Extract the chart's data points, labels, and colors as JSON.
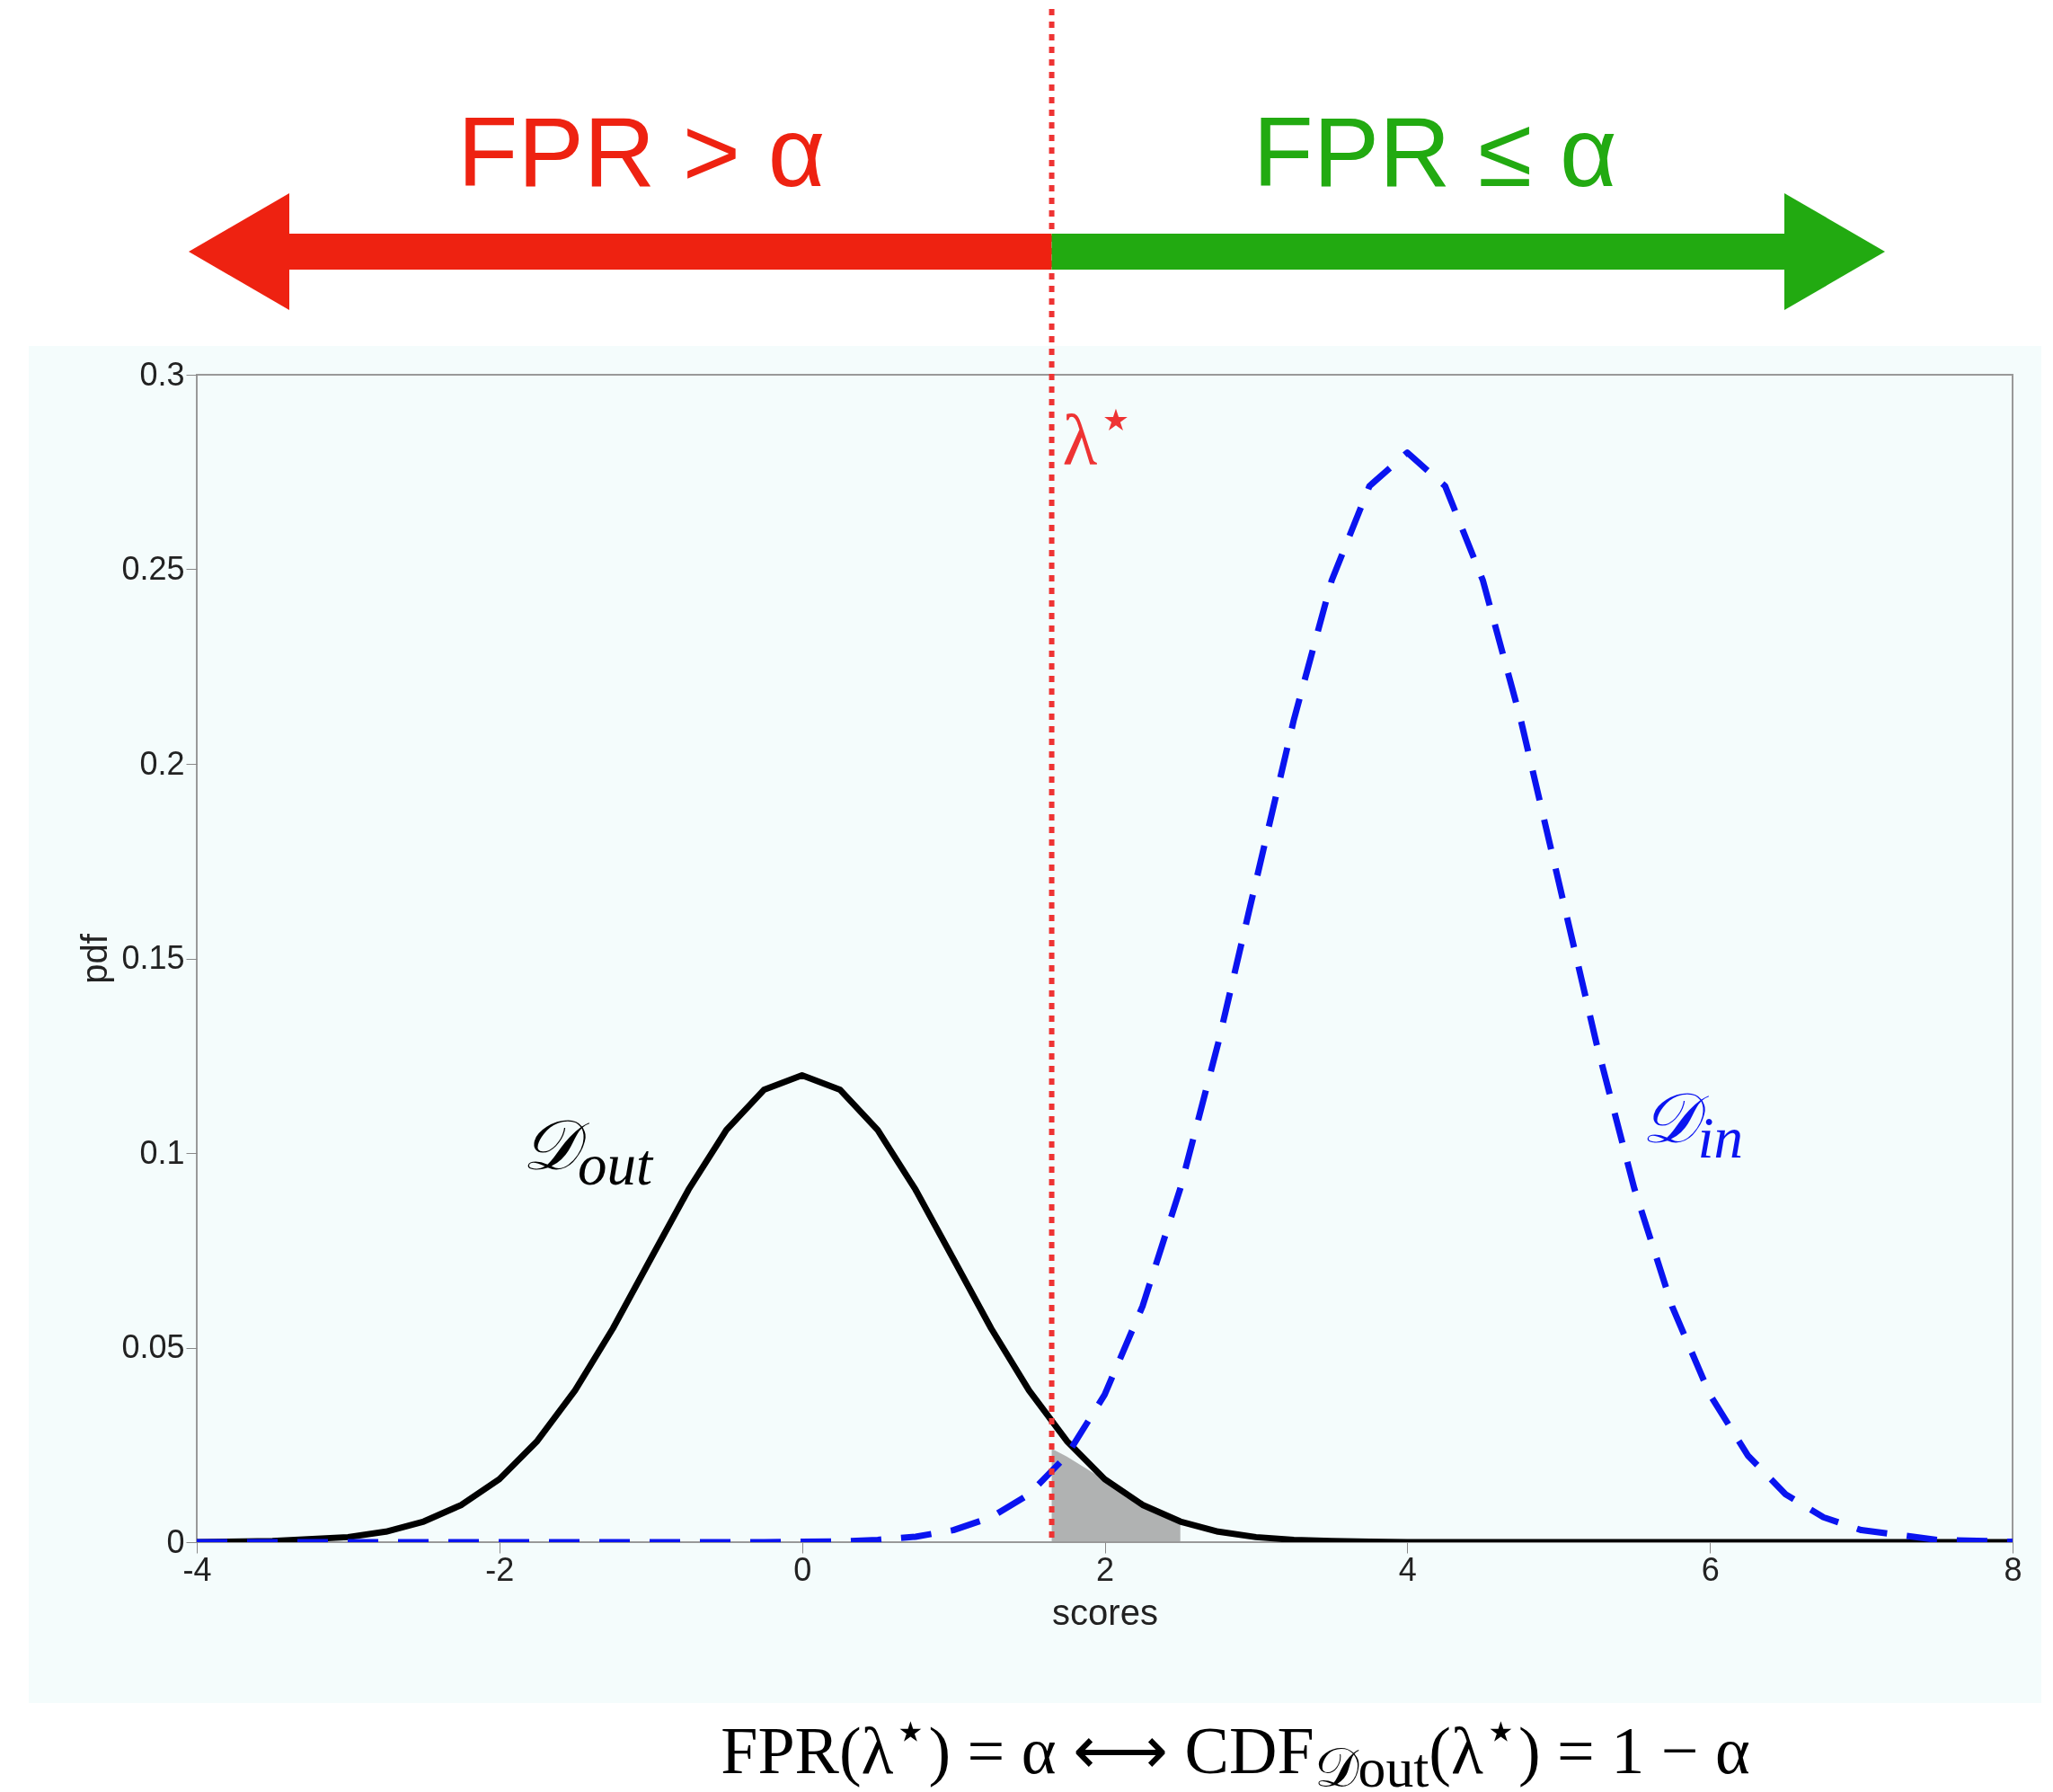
{
  "chart_data": {
    "type": "line",
    "xlabel": "scores",
    "ylabel": "pdf",
    "x": [
      -4,
      -3.5,
      -3,
      -2.75,
      -2.5,
      -2.25,
      -2,
      -1.75,
      -1.5,
      -1.25,
      -1,
      -0.75,
      -0.5,
      -0.25,
      0,
      0.25,
      0.5,
      0.75,
      1,
      1.25,
      1.5,
      1.75,
      2,
      2.25,
      2.5,
      2.75,
      3,
      3.25,
      3.5,
      3.75,
      4,
      4.25,
      4.5,
      4.75,
      5,
      5.25,
      5.5,
      5.75,
      6,
      6.25,
      6.5,
      6.75,
      7,
      7.5,
      8
    ],
    "series": [
      {
        "type": "area",
        "color": "#999999",
        "x": [
          1.65,
          1.75,
          2,
          2.25,
          2.5
        ],
        "values": [
          0.024,
          0.022,
          0.016,
          0.0096,
          0.0053
        ]
      },
      {
        "name": "𝒟$_{out}$",
        "color": "#000000",
        "line_style": "solid",
        "values": [
          0,
          0.0003,
          0.0013,
          0.0027,
          0.0053,
          0.0096,
          0.0162,
          0.026,
          0.039,
          0.0549,
          0.0728,
          0.0906,
          0.1059,
          0.1163,
          0.12,
          0.1163,
          0.1059,
          0.0906,
          0.0728,
          0.0549,
          0.039,
          0.026,
          0.0162,
          0.0096,
          0.0053,
          0.0027,
          0.0013,
          0.0006,
          0.0003,
          0.0001,
          0,
          0,
          0,
          0,
          0,
          0,
          0,
          0,
          0,
          0,
          0,
          0,
          0,
          0,
          0
        ]
      },
      {
        "name": "𝒟$_{in}$",
        "color": "#0a14f0",
        "line_style": "dashed",
        "values": [
          0,
          0,
          0,
          0,
          0,
          0,
          0,
          0,
          0,
          0,
          0,
          0,
          0,
          0,
          0.0001,
          0.0002,
          0.0006,
          0.0014,
          0.0031,
          0.0064,
          0.0123,
          0.0223,
          0.0379,
          0.0606,
          0.0909,
          0.1282,
          0.1698,
          0.2113,
          0.2471,
          0.2714,
          0.28,
          0.2714,
          0.2471,
          0.2113,
          0.1698,
          0.1282,
          0.0909,
          0.0606,
          0.0379,
          0.0223,
          0.0123,
          0.0064,
          0.0031,
          0.0006,
          0.0001
        ]
      }
    ],
    "xlim": [
      -4,
      8
    ],
    "xticks": [
      -4,
      -2,
      0,
      2,
      4,
      6,
      8
    ],
    "ylim": [
      0,
      0.3
    ],
    "yticks": [
      0,
      0.05,
      0.1,
      0.15,
      0.2,
      0.25,
      0.3
    ],
    "grid": false,
    "ref_lines": [
      {
        "axis": "x",
        "value": 1.65,
        "label": "λ$^{⋆}$",
        "color": "#ee3333",
        "line_style": "dotted"
      }
    ],
    "annotations": [
      "FPR > α",
      "FPR ≤ α",
      "FPR(λ$^{⋆}$) = α ⟷ CDF$_{𝒟out}$(λ$^{⋆}$) = 1 − α"
    ]
  }
}
